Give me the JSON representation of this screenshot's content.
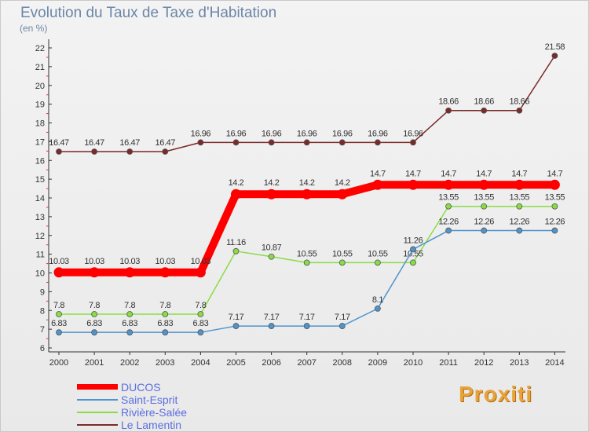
{
  "title": "Evolution du Taux de Taxe d'Habitation",
  "unit_label": "(en %)",
  "logo_text": "Proxiti",
  "chart_data": {
    "type": "line",
    "title": "Evolution du Taux de Taxe d'Habitation",
    "ylabel": "(en %)",
    "xlabel": "",
    "ylim": [
      6,
      22
    ],
    "y_ticks": [
      6,
      7,
      8,
      9,
      10,
      11,
      12,
      13,
      14,
      15,
      16,
      17,
      18,
      19,
      20,
      21,
      22
    ],
    "categories": [
      "2000",
      "2001",
      "2002",
      "2003",
      "2004",
      "2005",
      "2006",
      "2007",
      "2008",
      "2009",
      "2010",
      "2011",
      "2012",
      "2013",
      "2014"
    ],
    "legend_position": "bottom-left",
    "series": [
      {
        "name": "Le Lamentin",
        "color": "#7a2a2a",
        "values": [
          16.47,
          16.47,
          16.47,
          16.47,
          16.96,
          16.96,
          16.96,
          16.96,
          16.96,
          16.96,
          16.96,
          18.66,
          18.66,
          18.66,
          21.58
        ],
        "labels": [
          "16.47",
          "16.47",
          "16.47",
          "16.47",
          "16.96",
          "16.96",
          "16.96",
          "16.96",
          "16.96",
          "16.96",
          "16.96",
          "18.66",
          "18.66",
          "18.66",
          "21.58"
        ]
      },
      {
        "name": "Rivière-Salée",
        "color": "#88dd44",
        "values": [
          7.8,
          7.8,
          7.8,
          7.8,
          7.8,
          11.16,
          10.87,
          10.55,
          10.55,
          10.55,
          10.55,
          13.55,
          13.55,
          13.55,
          13.55
        ],
        "labels": [
          "7.8",
          "7.8",
          "7.8",
          "7.8",
          "7.8",
          "11.16",
          "10.87",
          "10.55",
          "10.55",
          "10.55",
          "10.55",
          "13.55",
          "13.55",
          "13.55",
          "13.55"
        ]
      },
      {
        "name": "Saint-Esprit",
        "color": "#4f94cd",
        "values": [
          6.83,
          6.83,
          6.83,
          6.83,
          6.83,
          7.17,
          7.17,
          7.17,
          7.17,
          8.1,
          11.26,
          12.26,
          12.26,
          12.26,
          12.26
        ],
        "labels": [
          "6.83",
          "6.83",
          "6.83",
          "6.83",
          "6.83",
          "7.17",
          "7.17",
          "7.17",
          "7.17",
          "8.1",
          "11.26",
          "12.26",
          "12.26",
          "12.26",
          "12.26"
        ]
      },
      {
        "name": "DUCOS",
        "color": "#ff0000",
        "values": [
          10.03,
          10.03,
          10.03,
          10.03,
          10.03,
          14.2,
          14.2,
          14.2,
          14.2,
          14.7,
          14.7,
          14.7,
          14.7,
          14.7,
          14.7
        ],
        "labels": [
          "10.03",
          "10.03",
          "10.03",
          "10.03",
          "10.03",
          "14.2",
          "14.2",
          "14.2",
          "14.2",
          "14.7",
          "14.7",
          "14.7",
          "14.7",
          "14.7",
          "14.7"
        ]
      }
    ],
    "legend": [
      "DUCOS",
      "Saint-Esprit",
      "Rivière-Salée",
      "Le Lamentin"
    ]
  }
}
